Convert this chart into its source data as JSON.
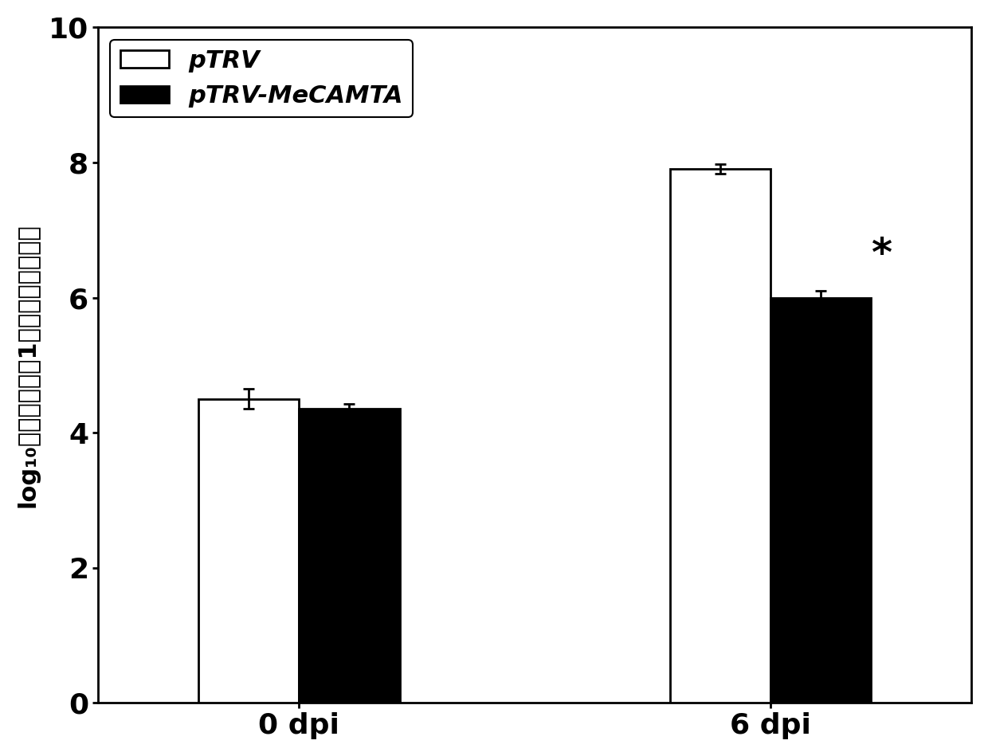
{
  "groups": [
    "0 dpi",
    "6 dpi"
  ],
  "pTRV_values": [
    4.5,
    7.9
  ],
  "pTRV_errors": [
    0.15,
    0.07
  ],
  "pTRV_MeCAMTA_values": [
    4.35,
    6.0
  ],
  "pTRV_MeCAMTA_errors": [
    0.08,
    0.1
  ],
  "bar_width": 0.32,
  "group_positions": [
    1.0,
    2.5
  ],
  "ylim": [
    0,
    10
  ],
  "yticks": [
    0,
    2,
    4,
    6,
    8,
    10
  ],
  "ylabel": "log₁₀（细菌数目／1平方厘米的叶片）",
  "pTRV_color": "#ffffff",
  "pTRV_MeCAMTA_color": "#000000",
  "pTRV_label": "pTRV",
  "pTRV_MeCAMTA_label": "pTRV-MeCAMTA",
  "significance_text": "*",
  "background_color": "#ffffff",
  "edge_color": "#000000",
  "fig_width": 12.4,
  "fig_height": 9.49,
  "dpi": 100
}
